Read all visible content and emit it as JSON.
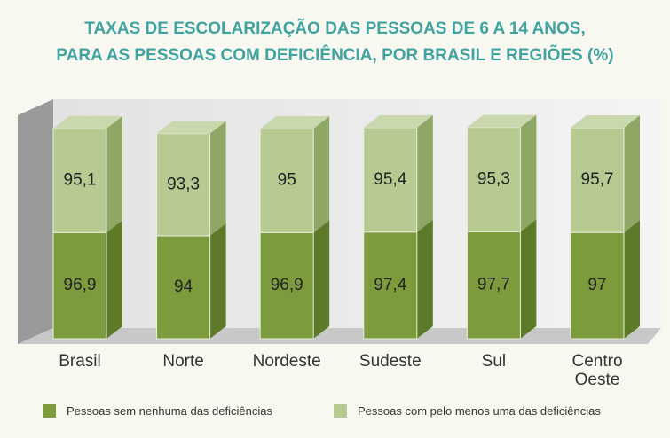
{
  "chart_data": {
    "type": "stacked-bar-3d",
    "title": "TAXAS DE ESCOLARIZAÇÃO DAS PESSOAS DE 6 A 14 ANOS,",
    "subtitle": "PARA AS PESSOAS COM DEFICIÊNCIA, POR BRASIL E REGIÕES (%)",
    "categories": [
      "Brasil",
      "Norte",
      "Nordeste",
      "Sudeste",
      "Sul",
      "Centro Oeste"
    ],
    "series": [
      {
        "name": "Pessoas sem nenhuma das deficiências",
        "color": "#7b9b3d",
        "side": "#5c7a28",
        "values": [
          96.9,
          94,
          96.9,
          97.4,
          97.7,
          97
        ],
        "value_labels": [
          "96,9",
          "94",
          "96,9",
          "97,4",
          "97,7",
          "97"
        ]
      },
      {
        "name": "Pessoas com pelo menos uma das deficiências",
        "color": "#b6ca92",
        "side": "#8ea765",
        "values": [
          95.1,
          93.3,
          95,
          95.4,
          95.3,
          95.7
        ],
        "value_labels": [
          "95,1",
          "93,3",
          "95",
          "95,4",
          "95,3",
          "95,7"
        ]
      }
    ]
  }
}
